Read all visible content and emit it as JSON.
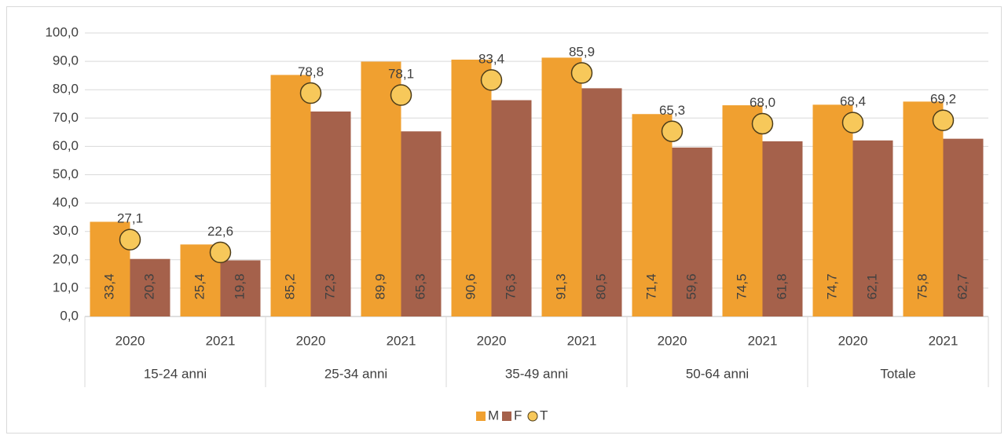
{
  "chart_data": {
    "type": "bar",
    "categories": [
      "2020",
      "2021",
      "2020",
      "2021",
      "2020",
      "2021",
      "2020",
      "2021",
      "2020",
      "2021"
    ],
    "groups": [
      "15-24 anni",
      "25-34 anni",
      "35-49 anni",
      "50-64 anni",
      "Totale"
    ],
    "series": [
      {
        "name": "M",
        "color": "#f0a030",
        "values": [
          33.4,
          25.4,
          85.2,
          89.9,
          90.6,
          91.3,
          71.4,
          74.5,
          74.7,
          75.8
        ],
        "value_labels": [
          "33,4",
          "25,4",
          "85,2",
          "89,9",
          "90,6",
          "91,3",
          "71,4",
          "74,5",
          "74,7",
          "75,8"
        ]
      },
      {
        "name": "F",
        "color": "#a5614b",
        "values": [
          20.3,
          19.8,
          72.3,
          65.3,
          76.3,
          80.5,
          59.6,
          61.8,
          62.1,
          62.7
        ],
        "value_labels": [
          "20,3",
          "19,8",
          "72,3",
          "65,3",
          "76,3",
          "80,5",
          "59,6",
          "61,8",
          "62,1",
          "62,7"
        ]
      },
      {
        "name": "T",
        "color": "#f7c85a",
        "marker": "circle",
        "values": [
          27.1,
          22.6,
          78.8,
          78.1,
          83.4,
          85.9,
          65.3,
          68.0,
          68.4,
          69.2
        ],
        "value_labels": [
          "27,1",
          "22,6",
          "78,8",
          "78,1",
          "83,4",
          "85,9",
          "65,3",
          "68,0",
          "68,4",
          "69,2"
        ]
      }
    ],
    "ylim": [
      0,
      100
    ],
    "yticks": [
      {
        "value": 0,
        "label": "0,0"
      },
      {
        "value": 10,
        "label": "10,0"
      },
      {
        "value": 20,
        "label": "20,0"
      },
      {
        "value": 30,
        "label": "30,0"
      },
      {
        "value": 40,
        "label": "40,0"
      },
      {
        "value": 50,
        "label": "50,0"
      },
      {
        "value": 60,
        "label": "60,0"
      },
      {
        "value": 70,
        "label": "70,0"
      },
      {
        "value": 80,
        "label": "80,0"
      },
      {
        "value": 90,
        "label": "90,0"
      },
      {
        "value": 100,
        "label": "100,0"
      }
    ],
    "grid": true,
    "legend": "bottom"
  }
}
